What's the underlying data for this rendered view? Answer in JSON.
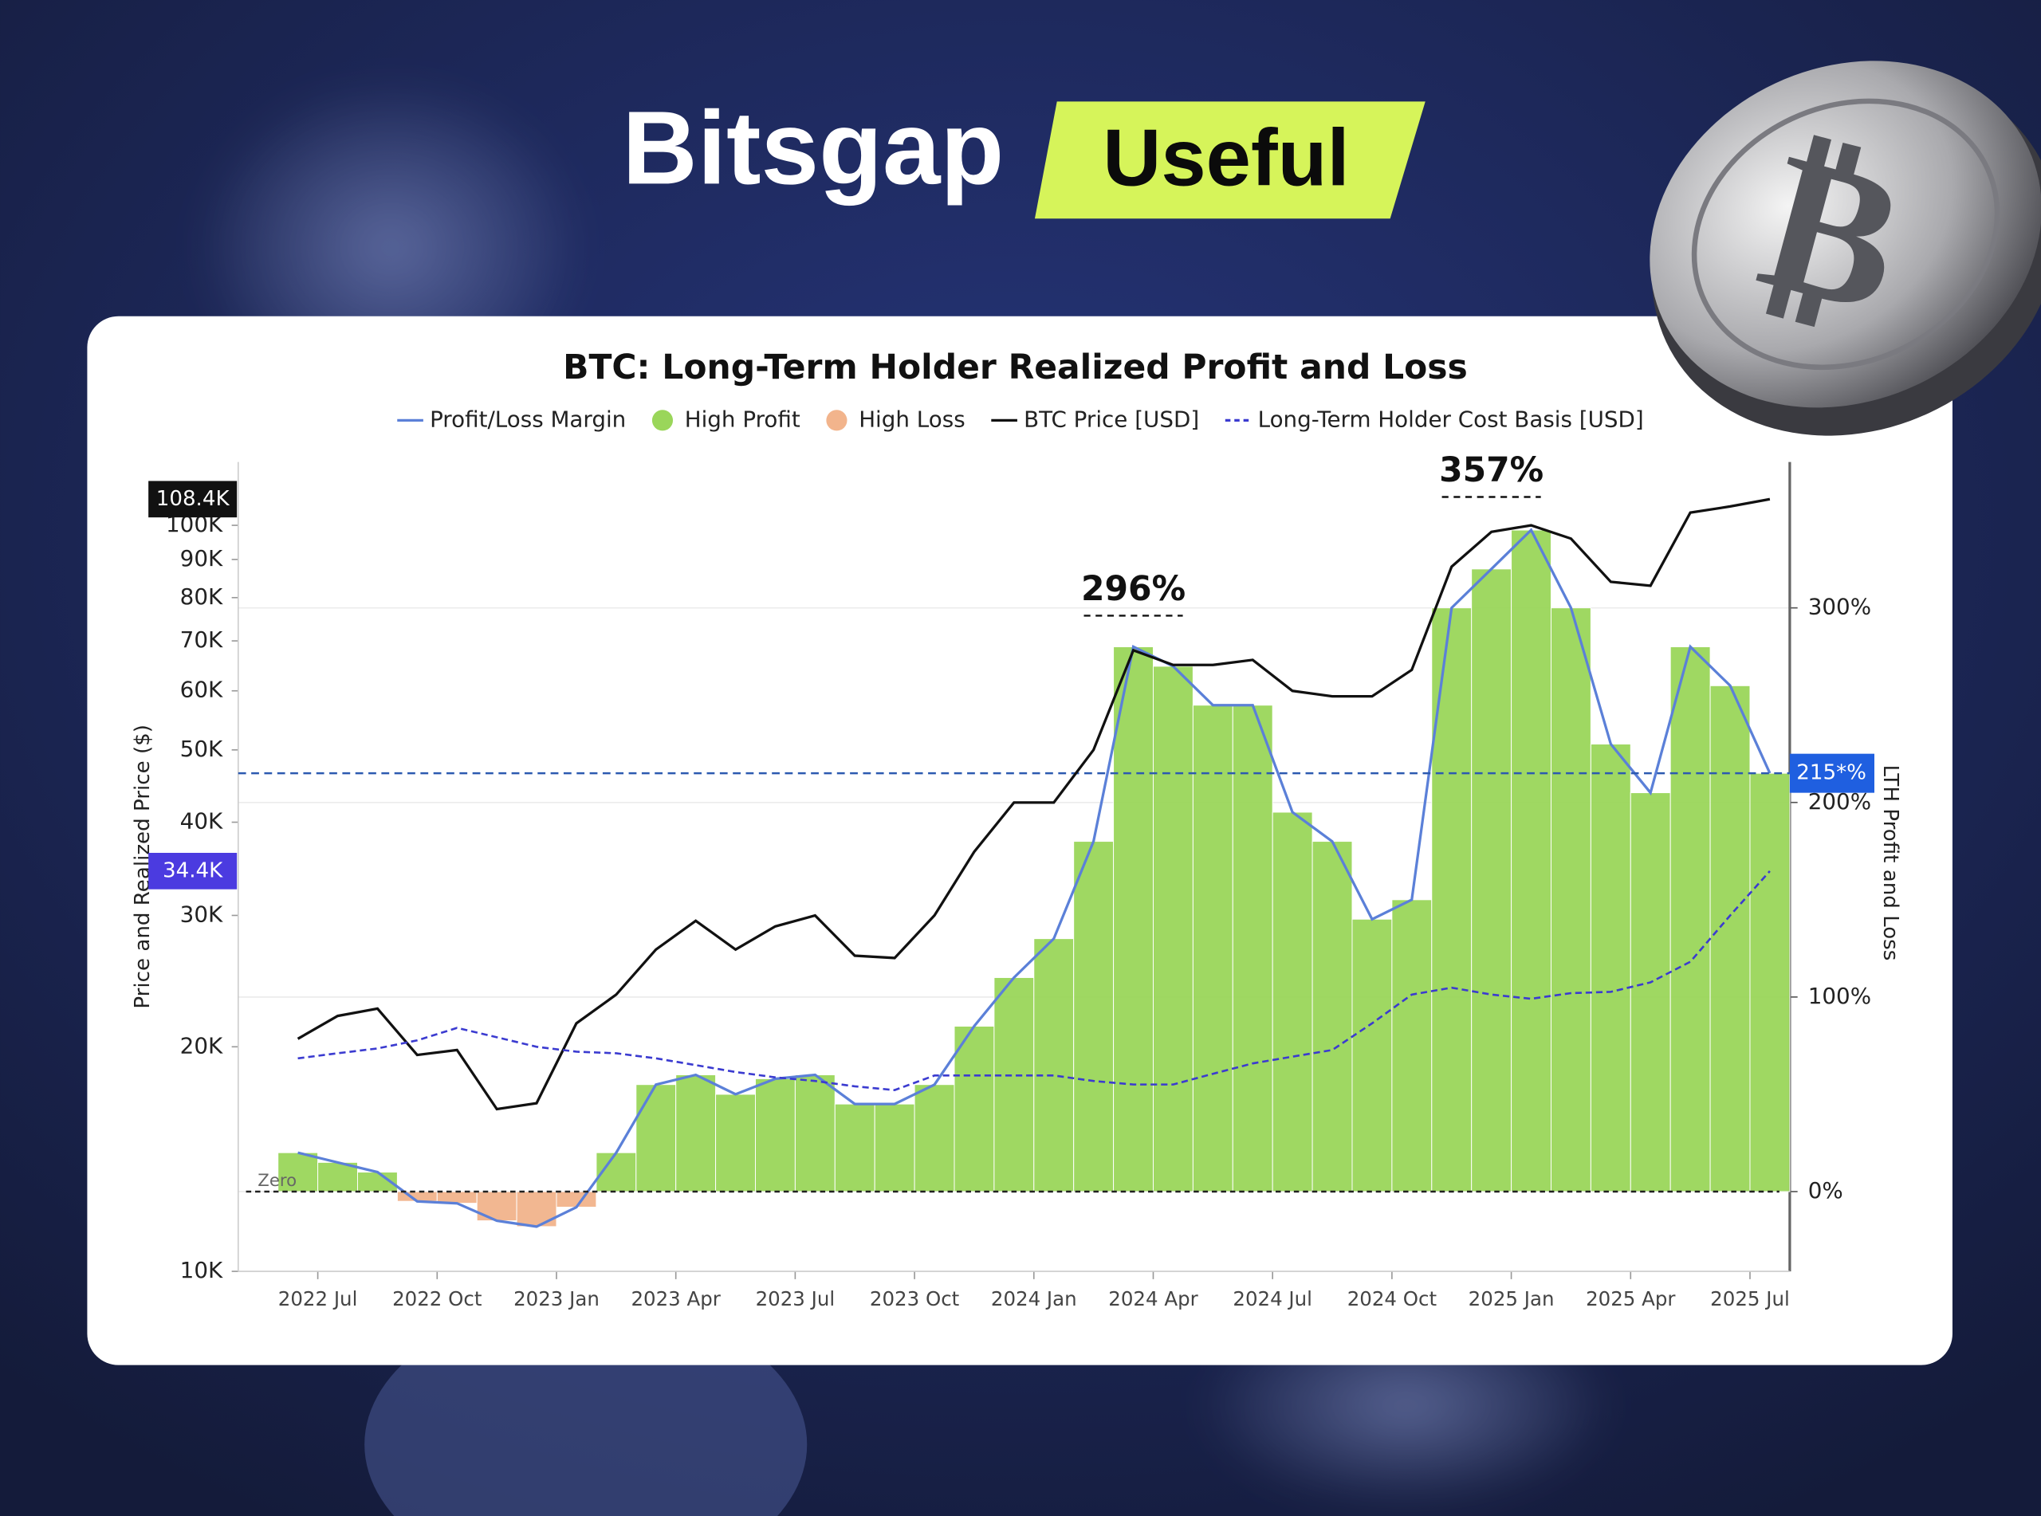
{
  "header": {
    "brand": "Bitsgap",
    "tag": "Useful"
  },
  "chart_data": {
    "type": "line",
    "title": "BTC: Long-Term Holder Realized Profit and Loss",
    "ylabel": "Price and Realized Price ($)",
    "y2label": "LTH Profit and Loss",
    "zero_label": "Zero",
    "x": [
      "2022-06",
      "2022-07",
      "2022-08",
      "2022-09",
      "2022-10",
      "2022-11",
      "2022-12",
      "2023-01",
      "2023-02",
      "2023-03",
      "2023-04",
      "2023-05",
      "2023-06",
      "2023-07",
      "2023-08",
      "2023-09",
      "2023-10",
      "2023-11",
      "2023-12",
      "2024-01",
      "2024-02",
      "2024-03",
      "2024-04",
      "2024-05",
      "2024-06",
      "2024-07",
      "2024-08",
      "2024-09",
      "2024-10",
      "2024-11",
      "2024-12",
      "2025-01",
      "2025-02",
      "2025-03",
      "2025-04",
      "2025-05",
      "2025-06",
      "2025-07"
    ],
    "xlim": [
      "2022-05",
      "2025-08"
    ],
    "xticks": [
      {
        "value": "2022-07",
        "label": "2022 Jul"
      },
      {
        "value": "2022-10",
        "label": "2022 Oct"
      },
      {
        "value": "2023-01",
        "label": "2023 Jan"
      },
      {
        "value": "2023-04",
        "label": "2023 Apr"
      },
      {
        "value": "2023-07",
        "label": "2023 Jul"
      },
      {
        "value": "2023-10",
        "label": "2023 Oct"
      },
      {
        "value": "2024-01",
        "label": "2024 Jan"
      },
      {
        "value": "2024-04",
        "label": "2024 Apr"
      },
      {
        "value": "2024-07",
        "label": "2024 Jul"
      },
      {
        "value": "2024-10",
        "label": "2024 Oct"
      },
      {
        "value": "2025-01",
        "label": "2025 Jan"
      },
      {
        "value": "2025-04",
        "label": "2025 Apr"
      },
      {
        "value": "2025-07",
        "label": "2025 Jul"
      }
    ],
    "log_scale": true,
    "ylim": [
      10000,
      121600
    ],
    "yticks": [
      {
        "value": 10000,
        "label": "10K"
      },
      {
        "value": 20000,
        "label": "20K"
      },
      {
        "value": 30000,
        "label": "30K"
      },
      {
        "value": 40000,
        "label": "40K"
      },
      {
        "value": 50000,
        "label": "50K"
      },
      {
        "value": 60000,
        "label": "60K"
      },
      {
        "value": 70000,
        "label": "70K"
      },
      {
        "value": 80000,
        "label": "80K"
      },
      {
        "value": 90000,
        "label": "90K"
      },
      {
        "value": 100000,
        "label": "100K"
      }
    ],
    "y2lim": [
      -41,
      375
    ],
    "y2ticks": [
      {
        "value": 0,
        "label": "0%"
      },
      {
        "value": 100,
        "label": "100%"
      },
      {
        "value": 200,
        "label": "200%"
      },
      {
        "value": 300,
        "label": "300%"
      }
    ],
    "grid": true,
    "series": [
      {
        "name": "Profit/Loss Margin",
        "color": "#5b80d8",
        "axis": "y2",
        "values": [
          20,
          15,
          10,
          -5,
          -6,
          -15,
          -18,
          -8,
          20,
          55,
          60,
          50,
          58,
          60,
          45,
          45,
          55,
          85,
          110,
          130,
          180,
          280,
          270,
          250,
          250,
          195,
          180,
          140,
          150,
          300,
          320,
          340,
          300,
          230,
          205,
          280,
          260,
          215
        ]
      },
      {
        "name": "BTC Price [USD]",
        "color": "#111111",
        "values": [
          20500,
          22000,
          22500,
          19500,
          19800,
          16500,
          16800,
          21500,
          23500,
          27000,
          29500,
          27000,
          29000,
          30000,
          26500,
          26300,
          30000,
          36500,
          42500,
          42500,
          50000,
          68000,
          65000,
          65000,
          66000,
          60000,
          59000,
          59000,
          64000,
          88000,
          98000,
          100000,
          96000,
          84000,
          83000,
          104000,
          106000,
          108400
        ]
      },
      {
        "name": "Long-Term Holder Cost Basis [USD]",
        "color": "#3b3bd0",
        "dashed": true,
        "values": [
          19300,
          19600,
          19900,
          20400,
          21200,
          20600,
          20000,
          19700,
          19600,
          19300,
          18900,
          18500,
          18200,
          18000,
          17700,
          17500,
          18300,
          18300,
          18300,
          18300,
          18000,
          17800,
          17800,
          18400,
          19000,
          19400,
          19800,
          21500,
          23500,
          24000,
          23500,
          23200,
          23600,
          23700,
          24400,
          26000,
          30000,
          34400
        ]
      }
    ],
    "zones": [
      {
        "name": "High Profit",
        "color": "#9ad65a"
      },
      {
        "name": "High Loss",
        "color": "#f2b48c"
      }
    ],
    "reference_line": {
      "value": 215,
      "label": "215*%",
      "color": "#1f5fe0"
    },
    "price_tags": [
      {
        "value": 108400,
        "label": "108.4K",
        "color": "#111111"
      },
      {
        "value": 34400,
        "label": "34.4K",
        "color": "#4b3be0"
      }
    ],
    "annotations": [
      {
        "x": "2024-03",
        "value": 296,
        "label": "296%"
      },
      {
        "x": "2024-12",
        "value": 357,
        "label": "357%"
      }
    ]
  }
}
